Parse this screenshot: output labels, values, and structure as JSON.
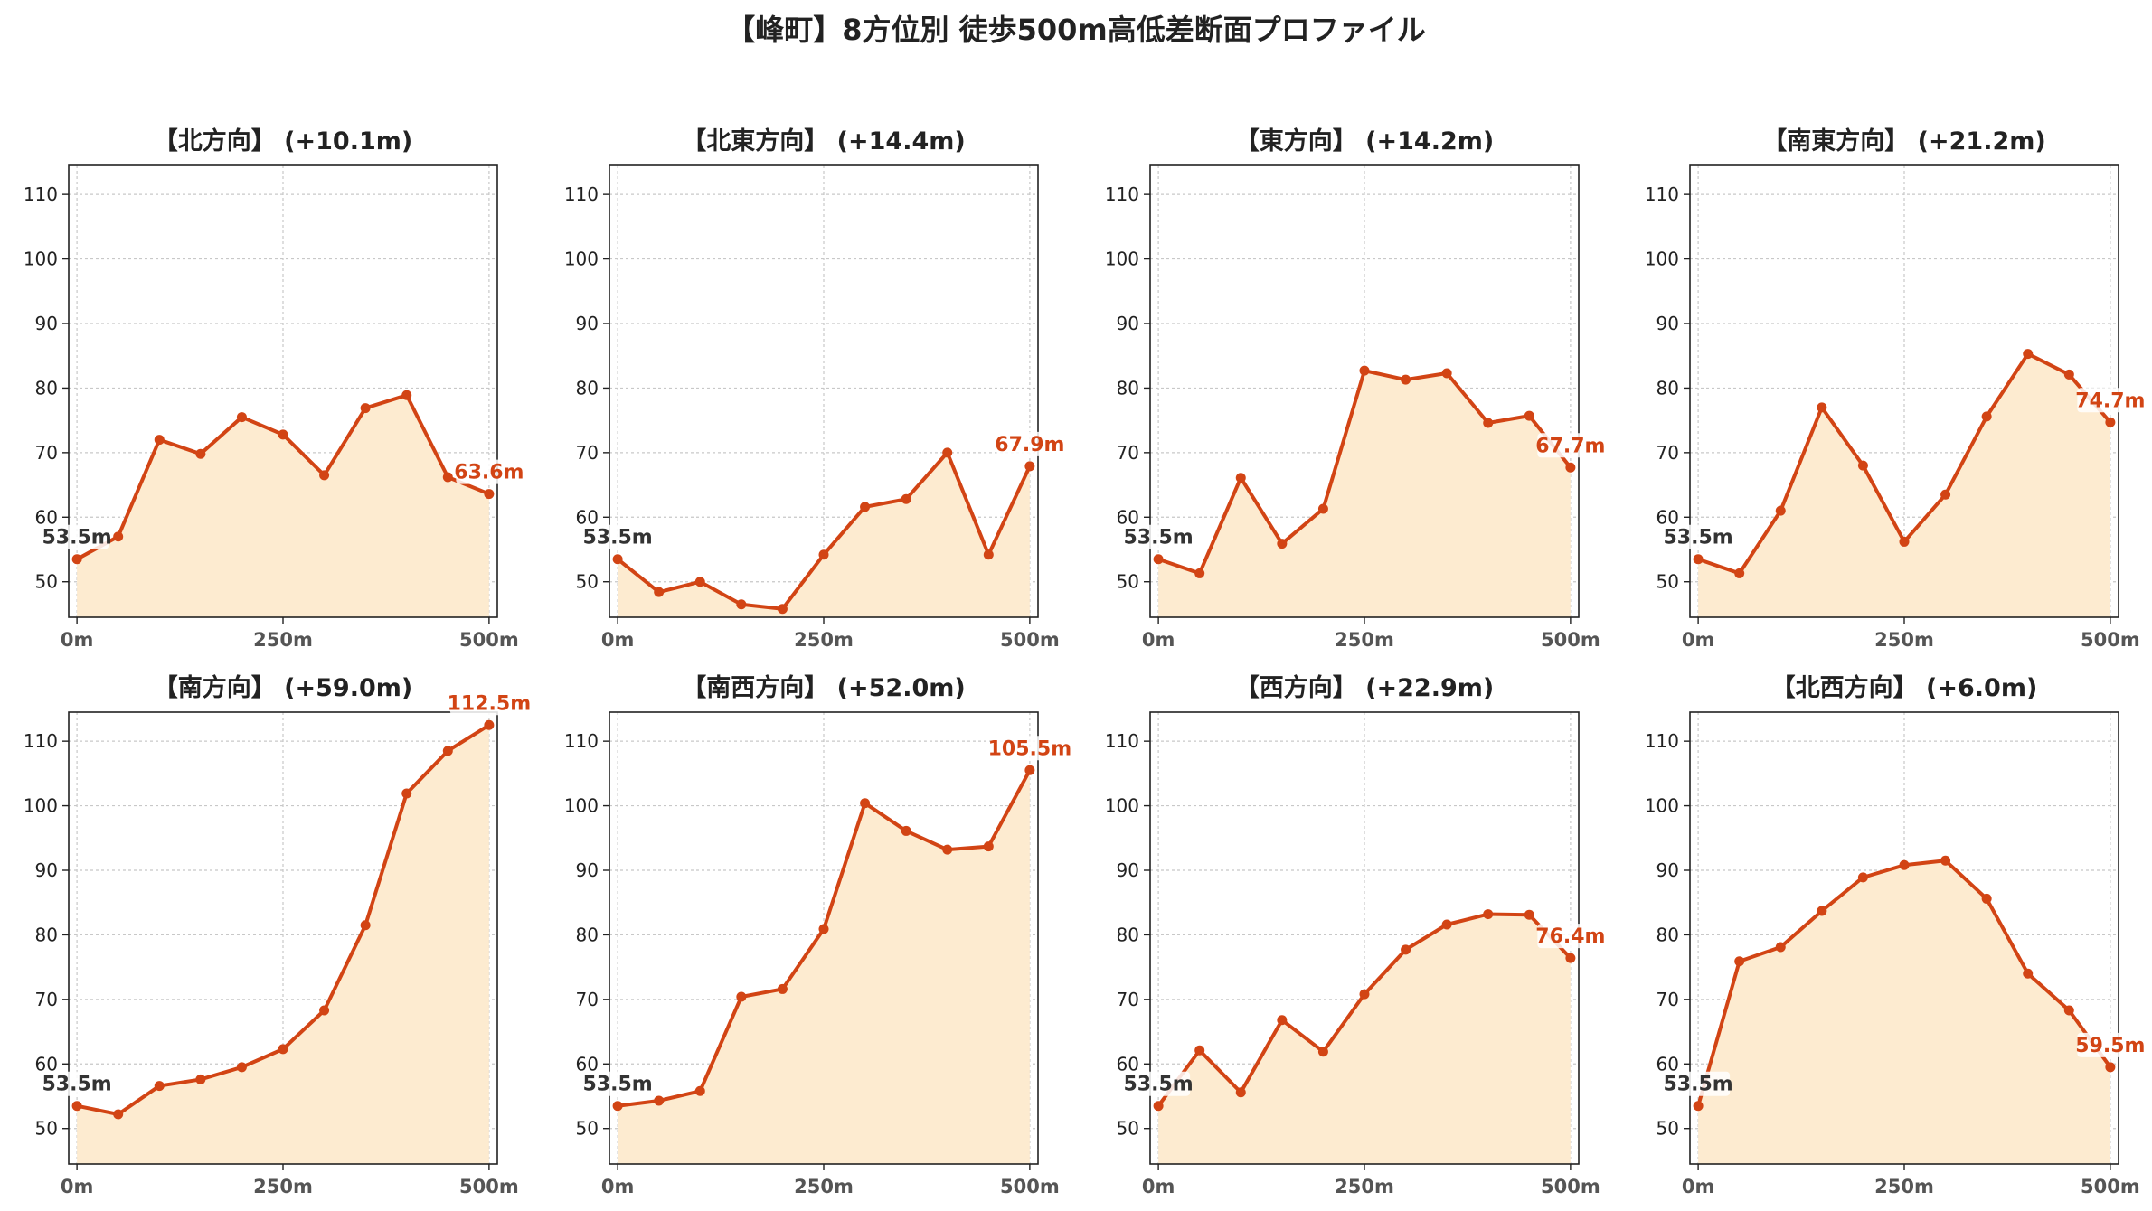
{
  "suptitle": "【峰町】8方位別 徒歩500m高低差断面プロファイル",
  "colors": {
    "line": "#d24414",
    "fill": "#fdebd0",
    "start_label": "#333333",
    "end_label": "#d24414",
    "grid": "#c8c8c8"
  },
  "chart_data": [
    {
      "type": "area",
      "title": "【北方向】 (+10.1m)",
      "x": [
        0,
        50,
        100,
        150,
        200,
        250,
        300,
        350,
        400,
        450,
        500
      ],
      "values": [
        53.5,
        57.0,
        72.0,
        69.8,
        75.5,
        72.8,
        66.5,
        76.9,
        78.9,
        66.2,
        63.6
      ],
      "start_label": "53.5m",
      "end_label": "63.6m",
      "xticks": [
        "0m",
        "250m",
        "500m"
      ],
      "yticks": [
        50,
        60,
        70,
        80,
        90,
        100,
        110
      ],
      "ylim": [
        44.5,
        114.5
      ],
      "xlim": [
        -10,
        510
      ],
      "grid": true
    },
    {
      "type": "area",
      "title": "【北東方向】 (+14.4m)",
      "x": [
        0,
        50,
        100,
        150,
        200,
        250,
        300,
        350,
        400,
        450,
        500
      ],
      "values": [
        53.5,
        48.4,
        50.0,
        46.5,
        45.8,
        54.2,
        61.6,
        62.8,
        70.0,
        54.2,
        67.9
      ],
      "start_label": "53.5m",
      "end_label": "67.9m",
      "xticks": [
        "0m",
        "250m",
        "500m"
      ],
      "yticks": [
        50,
        60,
        70,
        80,
        90,
        100,
        110
      ],
      "ylim": [
        44.5,
        114.5
      ],
      "xlim": [
        -10,
        510
      ],
      "grid": true
    },
    {
      "type": "area",
      "title": "【東方向】 (+14.2m)",
      "x": [
        0,
        50,
        100,
        150,
        200,
        250,
        300,
        350,
        400,
        450,
        500
      ],
      "values": [
        53.5,
        51.3,
        66.1,
        55.9,
        61.3,
        82.7,
        81.3,
        82.3,
        74.6,
        75.7,
        67.7
      ],
      "start_label": "53.5m",
      "end_label": "67.7m",
      "xticks": [
        "0m",
        "250m",
        "500m"
      ],
      "yticks": [
        50,
        60,
        70,
        80,
        90,
        100,
        110
      ],
      "ylim": [
        44.5,
        114.5
      ],
      "xlim": [
        -10,
        510
      ],
      "grid": true
    },
    {
      "type": "area",
      "title": "【南東方向】 (+21.2m)",
      "x": [
        0,
        50,
        100,
        150,
        200,
        250,
        300,
        350,
        400,
        450,
        500
      ],
      "values": [
        53.5,
        51.3,
        61.0,
        77.0,
        68.0,
        56.2,
        63.5,
        75.6,
        85.3,
        82.1,
        74.7
      ],
      "start_label": "53.5m",
      "end_label": "74.7m",
      "xticks": [
        "0m",
        "250m",
        "500m"
      ],
      "yticks": [
        50,
        60,
        70,
        80,
        90,
        100,
        110
      ],
      "ylim": [
        44.5,
        114.5
      ],
      "xlim": [
        -10,
        510
      ],
      "grid": true
    },
    {
      "type": "area",
      "title": "【南方向】 (+59.0m)",
      "x": [
        0,
        50,
        100,
        150,
        200,
        250,
        300,
        350,
        400,
        450,
        500
      ],
      "values": [
        53.5,
        52.2,
        56.6,
        57.6,
        59.5,
        62.3,
        68.3,
        81.5,
        101.9,
        108.5,
        112.5
      ],
      "start_label": "53.5m",
      "end_label": "112.5m",
      "xticks": [
        "0m",
        "250m",
        "500m"
      ],
      "yticks": [
        50,
        60,
        70,
        80,
        90,
        100,
        110
      ],
      "ylim": [
        44.5,
        114.5
      ],
      "xlim": [
        -10,
        510
      ],
      "grid": true
    },
    {
      "type": "area",
      "title": "【南西方向】 (+52.0m)",
      "x": [
        0,
        50,
        100,
        150,
        200,
        250,
        300,
        350,
        400,
        450,
        500
      ],
      "values": [
        53.5,
        54.3,
        55.8,
        70.4,
        71.6,
        80.9,
        100.4,
        96.1,
        93.2,
        93.7,
        105.5
      ],
      "start_label": "53.5m",
      "end_label": "105.5m",
      "xticks": [
        "0m",
        "250m",
        "500m"
      ],
      "yticks": [
        50,
        60,
        70,
        80,
        90,
        100,
        110
      ],
      "ylim": [
        44.5,
        114.5
      ],
      "xlim": [
        -10,
        510
      ],
      "grid": true
    },
    {
      "type": "area",
      "title": "【西方向】 (+22.9m)",
      "x": [
        0,
        50,
        100,
        150,
        200,
        250,
        300,
        350,
        400,
        450,
        500
      ],
      "values": [
        53.5,
        62.1,
        55.6,
        66.8,
        61.9,
        70.8,
        77.7,
        81.6,
        83.2,
        83.1,
        76.4
      ],
      "start_label": "53.5m",
      "end_label": "76.4m",
      "xticks": [
        "0m",
        "250m",
        "500m"
      ],
      "yticks": [
        50,
        60,
        70,
        80,
        90,
        100,
        110
      ],
      "ylim": [
        44.5,
        114.5
      ],
      "xlim": [
        -10,
        510
      ],
      "grid": true
    },
    {
      "type": "area",
      "title": "【北西方向】 (+6.0m)",
      "x": [
        0,
        50,
        100,
        150,
        200,
        250,
        300,
        350,
        400,
        450,
        500
      ],
      "values": [
        53.5,
        75.9,
        78.1,
        83.7,
        88.9,
        90.8,
        91.5,
        85.6,
        74.0,
        68.3,
        59.5
      ],
      "start_label": "53.5m",
      "end_label": "59.5m",
      "xticks": [
        "0m",
        "250m",
        "500m"
      ],
      "yticks": [
        50,
        60,
        70,
        80,
        90,
        100,
        110
      ],
      "ylim": [
        44.5,
        114.5
      ],
      "xlim": [
        -10,
        510
      ],
      "grid": true
    }
  ]
}
